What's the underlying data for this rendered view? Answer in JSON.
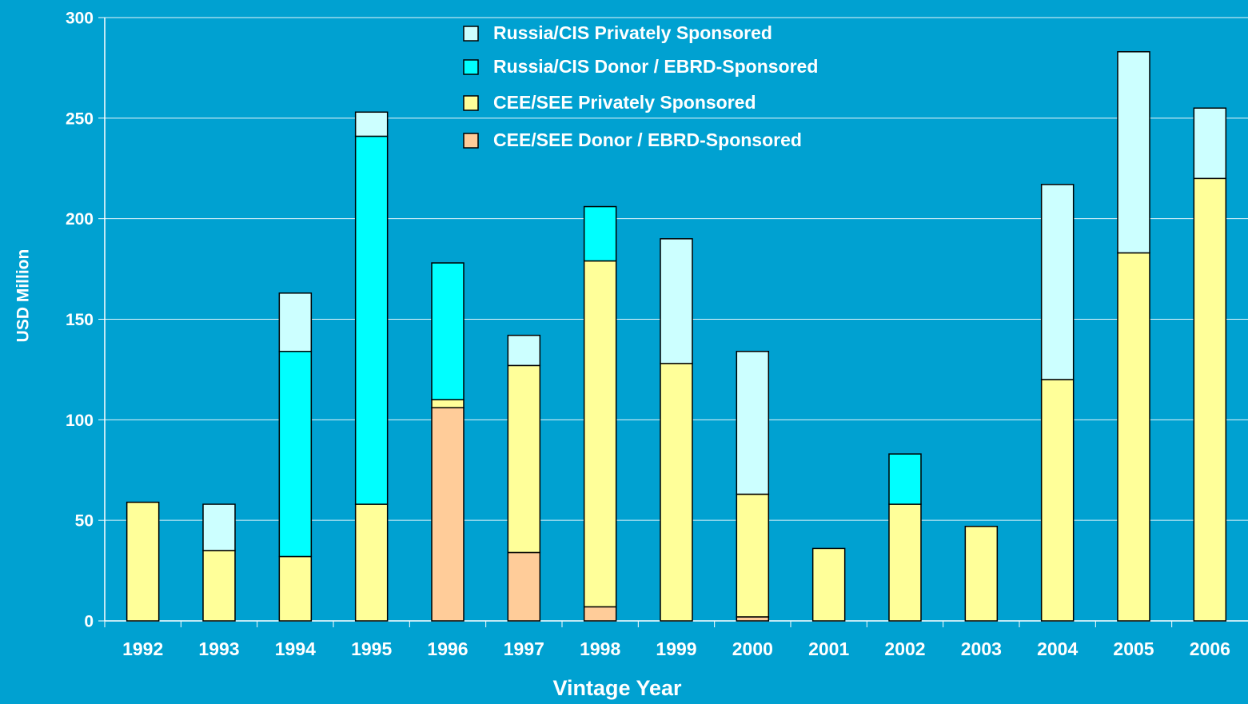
{
  "chart_data": {
    "type": "stacked-bar",
    "x_label": "Vintage Year",
    "y_label": "USD Million",
    "categories": [
      "1992",
      "1993",
      "1994",
      "1995",
      "1996",
      "1997",
      "1998",
      "1999",
      "2000",
      "2001",
      "2002",
      "2003",
      "2004",
      "2005",
      "2006"
    ],
    "series": [
      {
        "name": "Russia/CIS Privately Sponsored",
        "color": "#ccffff",
        "values": [
          0,
          23,
          29,
          12,
          0,
          15,
          0,
          62,
          71,
          0,
          0,
          0,
          97,
          100,
          35
        ]
      },
      {
        "name": "Russia/CIS Donor / EBRD-Sponsored",
        "color": "#00ffff",
        "values": [
          0,
          0,
          102,
          183,
          68,
          0,
          27,
          0,
          0,
          0,
          25,
          0,
          0,
          0,
          0
        ]
      },
      {
        "name": "CEE/SEE Privately Sponsored",
        "color": "#ffff99",
        "values": [
          59,
          35,
          32,
          58,
          4,
          93,
          172,
          128,
          61,
          36,
          58,
          47,
          120,
          183,
          220
        ]
      },
      {
        "name": "CEE/SEE Donor / EBRD-Sponsored",
        "color": "#ffcc99",
        "values": [
          0,
          0,
          0,
          0,
          106,
          34,
          7,
          0,
          2,
          0,
          0,
          0,
          0,
          0,
          0
        ]
      }
    ],
    "ylim": [
      0,
      300
    ],
    "yticks": [
      0,
      50,
      100,
      150,
      200,
      250,
      300
    ],
    "grid": true,
    "legend": "top"
  }
}
